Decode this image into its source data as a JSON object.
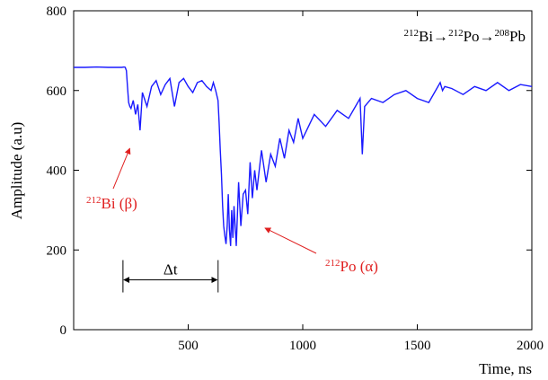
{
  "chart_data": {
    "type": "line",
    "title": "",
    "xlabel": "Time, ns",
    "ylabel": "Amplitude (a.u)",
    "xlim": [
      0,
      2000
    ],
    "ylim": [
      0,
      800
    ],
    "xticks": [
      500,
      1000,
      1500,
      2000
    ],
    "xtick_labels": [
      "500",
      "1000",
      "1500",
      "2000"
    ],
    "yticks": [
      0,
      200,
      400,
      600,
      800
    ],
    "ytick_labels": [
      "0",
      "200",
      "400",
      "600",
      "800"
    ],
    "grid": false,
    "line_color": "#1a1aff",
    "annotation_color": "#e02020",
    "annotations": {
      "decay_chain": {
        "parts": [
          {
            "text": "212",
            "sup": true
          },
          {
            "text": "Bi→",
            "sup": false
          },
          {
            "text": "212",
            "sup": true
          },
          {
            "text": "Po→",
            "sup": false
          },
          {
            "text": "208",
            "sup": true
          },
          {
            "text": "Pb",
            "sup": false
          }
        ]
      },
      "bi_label": {
        "parts": [
          {
            "text": "212",
            "sup": true
          },
          {
            "text": "Bi (β)",
            "sup": false
          }
        ],
        "points_to": {
          "x": 245,
          "y": 455
        }
      },
      "po_label": {
        "parts": [
          {
            "text": "212",
            "sup": true
          },
          {
            "text": "Po (α)",
            "sup": false
          }
        ],
        "points_to": {
          "x": 835,
          "y": 255
        }
      },
      "delta_t": {
        "text": "Δt",
        "x_start": 215,
        "x_end": 630,
        "y": 125
      }
    },
    "series": [
      {
        "x": [
          0,
          50,
          100,
          150,
          200,
          210,
          220,
          225,
          230,
          235,
          240,
          245,
          250,
          260,
          270,
          280,
          290,
          300,
          320,
          340,
          360,
          380,
          400,
          420,
          440,
          460,
          480,
          500,
          520,
          540,
          560,
          580,
          600,
          610,
          620,
          630,
          635,
          640,
          645,
          650,
          655,
          660,
          665,
          670,
          675,
          680,
          685,
          690,
          695,
          700,
          710,
          720,
          730,
          740,
          750,
          760,
          770,
          780,
          790,
          800,
          820,
          840,
          860,
          880,
          900,
          920,
          940,
          960,
          980,
          1000,
          1050,
          1100,
          1150,
          1200,
          1250,
          1260,
          1270,
          1300,
          1350,
          1400,
          1450,
          1500,
          1550,
          1600,
          1610,
          1620,
          1650,
          1700,
          1750,
          1800,
          1850,
          1900,
          1950,
          2000
        ],
        "y": [
          658,
          658,
          659,
          658,
          658,
          658,
          659,
          658,
          650,
          610,
          570,
          560,
          555,
          575,
          540,
          565,
          500,
          595,
          560,
          610,
          625,
          590,
          615,
          630,
          560,
          620,
          630,
          610,
          595,
          620,
          625,
          610,
          600,
          620,
          600,
          575,
          520,
          450,
          390,
          310,
          260,
          235,
          215,
          260,
          340,
          250,
          210,
          300,
          230,
          310,
          210,
          370,
          260,
          340,
          350,
          290,
          420,
          330,
          400,
          350,
          450,
          370,
          440,
          410,
          480,
          430,
          500,
          470,
          530,
          480,
          540,
          510,
          550,
          530,
          580,
          440,
          560,
          580,
          570,
          590,
          600,
          580,
          570,
          620,
          600,
          610,
          605,
          590,
          610,
          600,
          620,
          600,
          615,
          610
        ]
      }
    ]
  }
}
